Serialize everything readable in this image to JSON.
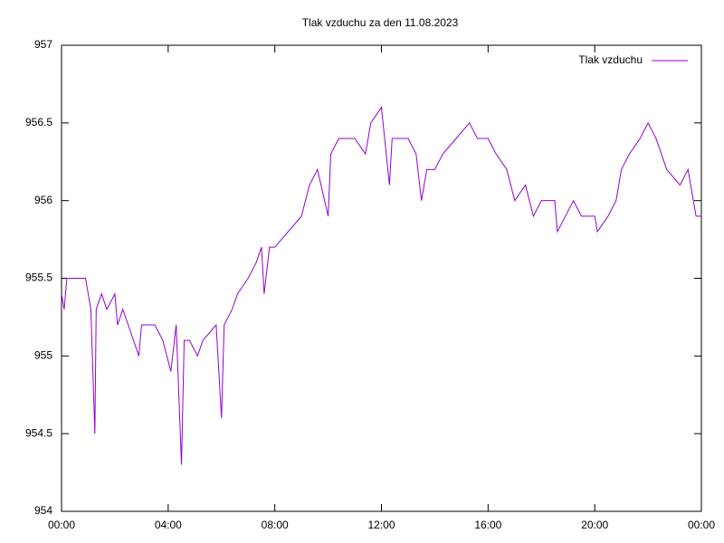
{
  "chart_data": {
    "type": "line",
    "title": "Tlak vzduchu za den 11.08.2023",
    "x": [
      0.0,
      0.1,
      0.2,
      0.5,
      0.9,
      1.0,
      1.1,
      1.25,
      1.3,
      1.5,
      1.7,
      2.0,
      2.1,
      2.3,
      2.5,
      2.9,
      3.0,
      3.5,
      3.8,
      4.1,
      4.3,
      4.5,
      4.6,
      4.8,
      5.1,
      5.3,
      5.8,
      6.0,
      6.1,
      6.4,
      6.6,
      7.0,
      7.3,
      7.5,
      7.6,
      7.8,
      8.0,
      8.5,
      9.0,
      9.3,
      9.6,
      10.0,
      10.1,
      10.4,
      11.0,
      11.4,
      11.6,
      12.0,
      12.3,
      12.4,
      13.0,
      13.3,
      13.5,
      13.7,
      14.0,
      14.3,
      14.8,
      15.3,
      15.6,
      16.0,
      16.3,
      16.7,
      17.0,
      17.4,
      17.7,
      18.0,
      18.5,
      18.6,
      19.2,
      19.5,
      20.0,
      20.1,
      20.5,
      20.8,
      21.0,
      21.3,
      21.7,
      22.0,
      22.3,
      22.7,
      23.2,
      23.5,
      23.8,
      24.0
    ],
    "series": [
      {
        "name": "Tlak vzduchu",
        "color": "#9400d3",
        "values": [
          955.4,
          955.3,
          955.5,
          955.5,
          955.5,
          955.4,
          955.3,
          954.5,
          955.3,
          955.4,
          955.3,
          955.4,
          955.2,
          955.3,
          955.2,
          955.0,
          955.2,
          955.2,
          955.1,
          954.9,
          955.2,
          954.3,
          955.1,
          955.1,
          955.0,
          955.1,
          955.2,
          954.6,
          955.2,
          955.3,
          955.4,
          955.5,
          955.6,
          955.7,
          955.4,
          955.7,
          955.7,
          955.8,
          955.9,
          956.1,
          956.2,
          955.9,
          956.3,
          956.4,
          956.4,
          956.3,
          956.5,
          956.6,
          956.1,
          956.4,
          956.4,
          956.3,
          956.0,
          956.2,
          956.2,
          956.3,
          956.4,
          956.5,
          956.4,
          956.4,
          956.3,
          956.2,
          956.0,
          956.1,
          955.9,
          956.0,
          956.0,
          955.8,
          956.0,
          955.9,
          955.9,
          955.8,
          955.9,
          956.0,
          956.2,
          956.3,
          956.4,
          956.5,
          956.4,
          956.2,
          956.1,
          956.2,
          955.9,
          955.9
        ]
      }
    ],
    "xlim": [
      0,
      24
    ],
    "xticks": [
      {
        "value": 0,
        "label": "00:00"
      },
      {
        "value": 4,
        "label": "04:00"
      },
      {
        "value": 8,
        "label": "08:00"
      },
      {
        "value": 12,
        "label": "12:00"
      },
      {
        "value": 16,
        "label": "16:00"
      },
      {
        "value": 20,
        "label": "20:00"
      },
      {
        "value": 24,
        "label": "00:00"
      }
    ],
    "ylim": [
      954,
      957
    ],
    "yticks": [
      954,
      954.5,
      955,
      955.5,
      956,
      956.5,
      957
    ],
    "legend": "top-right"
  }
}
